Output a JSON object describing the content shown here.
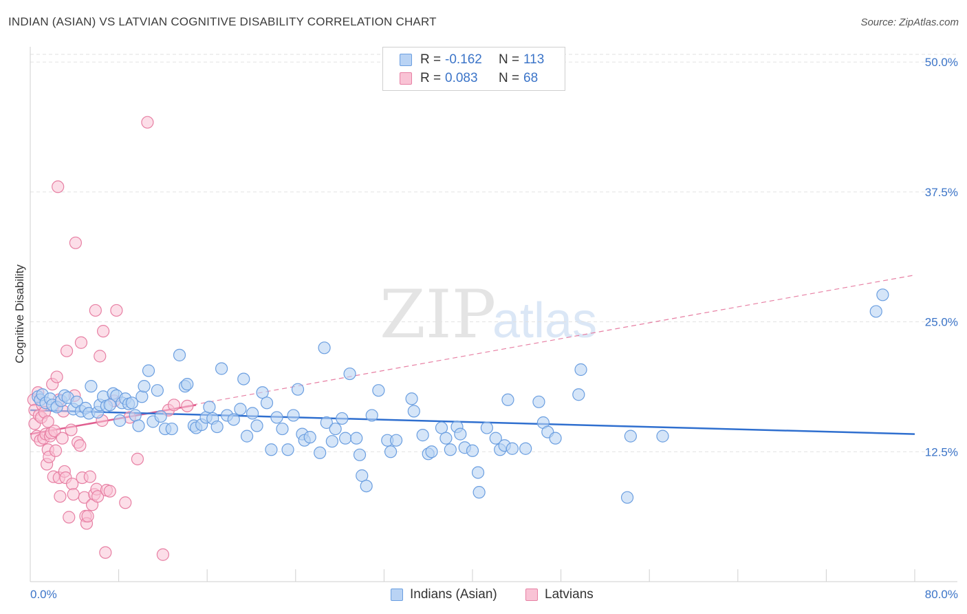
{
  "title": "INDIAN (ASIAN) VS LATVIAN COGNITIVE DISABILITY CORRELATION CHART",
  "source": "Source: ZipAtlas.com",
  "legend_stats": [
    {
      "swatch_color": "#b9d3f4",
      "r_label": "R =",
      "r_value": "-0.162",
      "n_label": "N =",
      "n_value": "113"
    },
    {
      "swatch_color": "#f9c3d5",
      "r_label": "R =",
      "r_value": "0.083",
      "n_label": "N =",
      "n_value": "68"
    }
  ],
  "bottom_legend": [
    {
      "label": "Indians (Asian)",
      "color": "#b9d3f4"
    },
    {
      "label": "Latvians",
      "color": "#f9c3d5"
    }
  ],
  "chart_data": {
    "type": "scatter",
    "ylabel": "Cognitive Disability",
    "xlabel": "",
    "xlim": [
      0,
      80
    ],
    "ylim": [
      0,
      51
    ],
    "x_tick_labels": [
      "0.0%",
      "80.0%"
    ],
    "y_ticks": [
      12.5,
      25.0,
      37.5,
      50.0
    ],
    "y_tick_labels": [
      "12.5%",
      "25.0%",
      "37.5%",
      "50.0%"
    ],
    "grid": true,
    "watermark": {
      "part1": "ZIP",
      "part2": "atlas"
    },
    "series": [
      {
        "name": "Indians (Asian)",
        "color": "#6a9ee0",
        "fill": "#b9d3f4",
        "trend": {
          "x": [
            0,
            80
          ],
          "y": [
            16.5,
            14.2
          ],
          "style": "solid",
          "color": "#2f6fcf"
        },
        "points": [
          [
            0.7,
            17.8
          ],
          [
            0.9,
            17.5
          ],
          [
            1.1,
            18.0
          ],
          [
            1.4,
            17.2
          ],
          [
            1.8,
            17.6
          ],
          [
            2.0,
            17.0
          ],
          [
            2.4,
            16.8
          ],
          [
            2.8,
            17.4
          ],
          [
            3.1,
            17.9
          ],
          [
            3.4,
            17.7
          ],
          [
            3.9,
            16.6
          ],
          [
            4.2,
            17.3
          ],
          [
            4.6,
            16.4
          ],
          [
            5.0,
            16.7
          ],
          [
            5.3,
            16.2
          ],
          [
            5.5,
            18.8
          ],
          [
            6.1,
            16.3
          ],
          [
            6.3,
            17.0
          ],
          [
            6.6,
            17.8
          ],
          [
            6.9,
            16.9
          ],
          [
            7.2,
            17.0
          ],
          [
            7.5,
            18.1
          ],
          [
            7.8,
            17.9
          ],
          [
            8.1,
            15.5
          ],
          [
            8.3,
            17.2
          ],
          [
            8.6,
            17.6
          ],
          [
            8.9,
            17.1
          ],
          [
            9.2,
            17.2
          ],
          [
            9.5,
            16.0
          ],
          [
            9.8,
            15.0
          ],
          [
            10.1,
            17.8
          ],
          [
            10.3,
            18.8
          ],
          [
            10.7,
            20.3
          ],
          [
            11.1,
            15.4
          ],
          [
            11.5,
            18.4
          ],
          [
            11.8,
            15.9
          ],
          [
            12.2,
            14.7
          ],
          [
            12.8,
            14.7
          ],
          [
            13.5,
            21.8
          ],
          [
            14.0,
            18.8
          ],
          [
            14.2,
            19.0
          ],
          [
            14.8,
            15.0
          ],
          [
            15.0,
            14.8
          ],
          [
            15.5,
            15.1
          ],
          [
            15.9,
            15.8
          ],
          [
            16.2,
            16.8
          ],
          [
            16.5,
            15.7
          ],
          [
            16.9,
            14.9
          ],
          [
            17.3,
            20.5
          ],
          [
            17.8,
            16.0
          ],
          [
            18.4,
            15.6
          ],
          [
            19.0,
            16.6
          ],
          [
            19.3,
            19.5
          ],
          [
            19.6,
            14.0
          ],
          [
            20.1,
            16.2
          ],
          [
            20.5,
            15.0
          ],
          [
            21.0,
            18.2
          ],
          [
            21.4,
            17.2
          ],
          [
            21.8,
            12.7
          ],
          [
            22.3,
            15.8
          ],
          [
            22.8,
            14.7
          ],
          [
            23.3,
            12.7
          ],
          [
            23.8,
            16.0
          ],
          [
            24.2,
            18.5
          ],
          [
            24.6,
            14.2
          ],
          [
            24.8,
            13.6
          ],
          [
            25.3,
            13.9
          ],
          [
            26.2,
            12.4
          ],
          [
            26.6,
            22.5
          ],
          [
            26.8,
            15.3
          ],
          [
            27.3,
            13.5
          ],
          [
            27.6,
            14.7
          ],
          [
            28.2,
            15.7
          ],
          [
            28.5,
            13.8
          ],
          [
            28.9,
            20.0
          ],
          [
            29.5,
            13.8
          ],
          [
            29.8,
            12.2
          ],
          [
            30.0,
            10.2
          ],
          [
            30.4,
            9.2
          ],
          [
            30.9,
            16.0
          ],
          [
            31.5,
            18.4
          ],
          [
            32.3,
            13.6
          ],
          [
            32.6,
            12.5
          ],
          [
            33.1,
            13.6
          ],
          [
            34.5,
            17.6
          ],
          [
            34.7,
            16.4
          ],
          [
            35.5,
            14.1
          ],
          [
            36.0,
            12.3
          ],
          [
            36.3,
            12.5
          ],
          [
            37.2,
            14.8
          ],
          [
            37.6,
            13.8
          ],
          [
            38.0,
            12.7
          ],
          [
            38.6,
            14.9
          ],
          [
            38.9,
            14.2
          ],
          [
            39.3,
            12.9
          ],
          [
            40.0,
            12.6
          ],
          [
            40.5,
            10.5
          ],
          [
            40.6,
            8.6
          ],
          [
            41.3,
            14.8
          ],
          [
            42.1,
            13.8
          ],
          [
            42.5,
            12.7
          ],
          [
            42.9,
            13.1
          ],
          [
            43.2,
            17.5
          ],
          [
            43.6,
            12.8
          ],
          [
            44.8,
            12.8
          ],
          [
            46.0,
            17.3
          ],
          [
            46.4,
            15.3
          ],
          [
            46.8,
            14.4
          ],
          [
            47.5,
            13.8
          ],
          [
            49.6,
            18.0
          ],
          [
            49.8,
            20.4
          ],
          [
            54.0,
            8.1
          ],
          [
            54.3,
            14.0
          ],
          [
            57.2,
            14.0
          ],
          [
            76.5,
            26.0
          ],
          [
            77.1,
            27.6
          ]
        ]
      },
      {
        "name": "Latvians",
        "color": "#e77fa3",
        "fill": "#f9c3d5",
        "trend_solid": {
          "x": [
            0,
            15
          ],
          "y": [
            14.2,
            17.0
          ],
          "style": "solid",
          "color": "#e05e8f"
        },
        "trend_dashed": {
          "x": [
            0,
            80
          ],
          "y": [
            14.2,
            29.5
          ],
          "style": "dashed",
          "color": "#e77fa3"
        },
        "points": [
          [
            0.3,
            17.5
          ],
          [
            0.4,
            16.5
          ],
          [
            0.4,
            15.2
          ],
          [
            0.6,
            14.0
          ],
          [
            0.7,
            18.2
          ],
          [
            0.8,
            16.0
          ],
          [
            0.9,
            13.6
          ],
          [
            1.0,
            15.8
          ],
          [
            1.1,
            17.0
          ],
          [
            1.2,
            13.8
          ],
          [
            1.3,
            16.3
          ],
          [
            1.4,
            14.2
          ],
          [
            1.5,
            11.3
          ],
          [
            1.6,
            12.7
          ],
          [
            1.6,
            15.4
          ],
          [
            1.7,
            12.0
          ],
          [
            1.8,
            14.0
          ],
          [
            1.9,
            14.3
          ],
          [
            2.0,
            19.0
          ],
          [
            2.1,
            10.1
          ],
          [
            2.2,
            14.5
          ],
          [
            2.3,
            12.6
          ],
          [
            2.4,
            19.7
          ],
          [
            2.6,
            17.5
          ],
          [
            2.6,
            10.0
          ],
          [
            2.7,
            8.2
          ],
          [
            2.9,
            13.8
          ],
          [
            3.0,
            16.4
          ],
          [
            3.1,
            10.6
          ],
          [
            3.2,
            10.0
          ],
          [
            3.3,
            22.2
          ],
          [
            3.5,
            6.2
          ],
          [
            3.7,
            14.6
          ],
          [
            3.8,
            9.4
          ],
          [
            3.9,
            8.4
          ],
          [
            4.0,
            17.9
          ],
          [
            4.1,
            32.6
          ],
          [
            4.3,
            13.4
          ],
          [
            4.5,
            13.1
          ],
          [
            4.6,
            23.0
          ],
          [
            4.7,
            10.0
          ],
          [
            4.9,
            8.1
          ],
          [
            5.0,
            6.3
          ],
          [
            5.1,
            5.6
          ],
          [
            5.2,
            6.3
          ],
          [
            5.4,
            10.1
          ],
          [
            5.6,
            7.4
          ],
          [
            5.8,
            8.4
          ],
          [
            5.9,
            26.1
          ],
          [
            6.0,
            8.9
          ],
          [
            6.1,
            8.2
          ],
          [
            6.3,
            21.7
          ],
          [
            6.5,
            15.5
          ],
          [
            6.6,
            24.1
          ],
          [
            6.8,
            2.8
          ],
          [
            6.9,
            8.8
          ],
          [
            7.2,
            8.7
          ],
          [
            7.6,
            17.4
          ],
          [
            7.8,
            26.1
          ],
          [
            8.6,
            7.6
          ],
          [
            9.0,
            15.8
          ],
          [
            9.7,
            11.8
          ],
          [
            10.6,
            44.2
          ],
          [
            12.0,
            2.6
          ],
          [
            12.5,
            16.5
          ],
          [
            13.0,
            17.0
          ],
          [
            14.2,
            16.9
          ],
          [
            2.5,
            38.0
          ]
        ]
      }
    ]
  }
}
